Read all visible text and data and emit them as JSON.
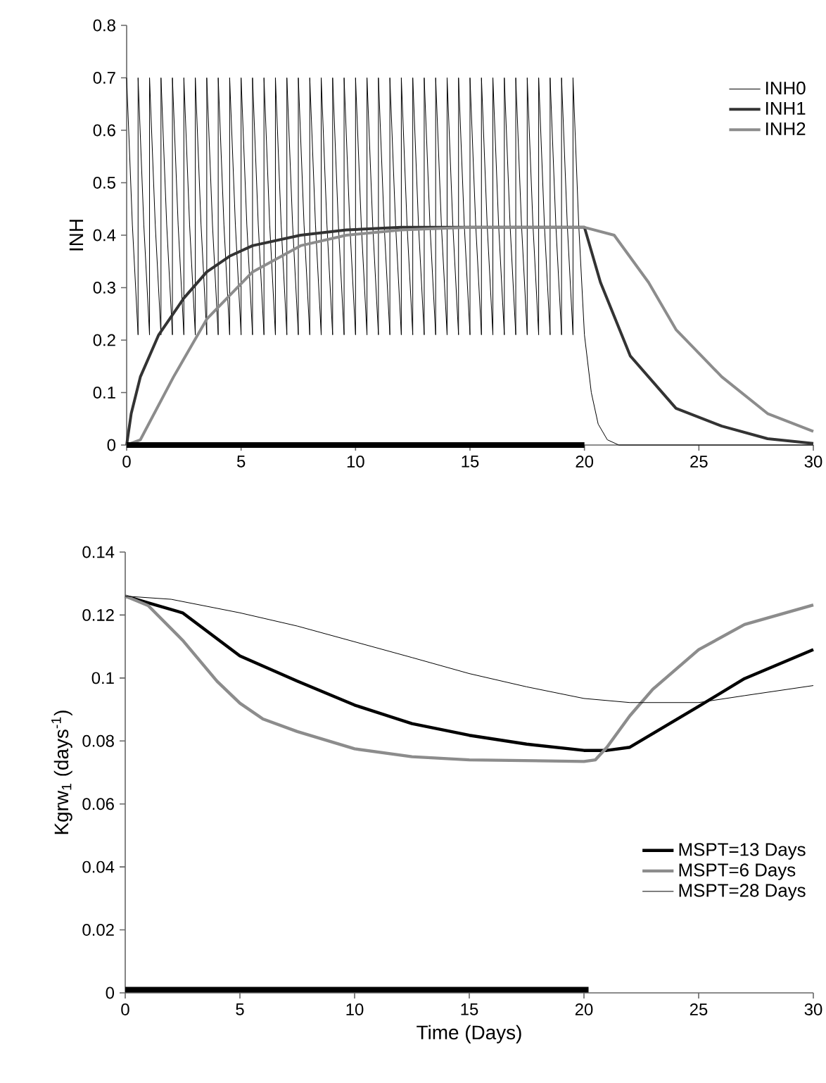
{
  "chart_data": [
    {
      "type": "line",
      "ylabel": "INH",
      "xlim": [
        0,
        30
      ],
      "ylim": [
        0,
        0.8
      ],
      "xticks": [
        0,
        5,
        10,
        15,
        20,
        25,
        30
      ],
      "yticks": [
        0,
        0.1,
        0.2,
        0.3,
        0.4,
        0.5,
        0.6,
        0.7,
        0.8
      ],
      "legend": "top right",
      "marker": "none",
      "line_style": "solid",
      "series": [
        {
          "name": "INH0",
          "color": "#000000",
          "x": [
            0,
            0.25,
            0.5,
            0.5,
            0.75,
            1,
            1,
            1.25,
            1.5,
            1.5,
            1.75,
            2,
            2,
            2.25,
            2.5,
            2.5,
            2.75,
            3,
            3,
            3.25,
            3.5,
            3.5,
            3.75,
            4,
            4,
            4.25,
            4.5,
            4.5,
            4.75,
            5,
            5,
            5.25,
            5.5,
            5.5,
            5.75,
            6,
            6,
            6.25,
            6.5,
            6.5,
            6.75,
            7,
            7,
            7.25,
            7.5,
            7.5,
            7.75,
            8,
            8,
            8.25,
            8.5,
            8.5,
            8.75,
            9,
            9,
            9.25,
            9.5,
            9.5,
            9.75,
            10,
            10,
            10.25,
            10.5,
            10.5,
            10.75,
            11,
            11,
            11.25,
            11.5,
            11.5,
            11.75,
            12,
            12,
            12.25,
            12.5,
            12.5,
            12.75,
            13,
            13,
            13.25,
            13.5,
            13.5,
            13.75,
            14,
            14,
            14.25,
            14.5,
            14.5,
            14.75,
            15,
            15,
            15.25,
            15.5,
            15.5,
            15.75,
            16,
            16,
            16.25,
            16.5,
            16.5,
            16.75,
            17,
            17,
            17.25,
            17.5,
            17.5,
            17.75,
            18,
            18,
            18.25,
            18.5,
            18.5,
            18.75,
            19,
            19,
            19.25,
            19.5,
            19.5,
            19.75,
            20,
            20.3,
            20.6,
            21,
            21.5,
            30
          ],
          "values": [
            0.7,
            0.42,
            0.21,
            0.7,
            0.42,
            0.21,
            0.7,
            0.42,
            0.21,
            0.7,
            0.42,
            0.21,
            0.7,
            0.42,
            0.21,
            0.7,
            0.42,
            0.21,
            0.7,
            0.42,
            0.21,
            0.7,
            0.42,
            0.21,
            0.7,
            0.42,
            0.21,
            0.7,
            0.42,
            0.21,
            0.7,
            0.42,
            0.21,
            0.7,
            0.42,
            0.21,
            0.7,
            0.42,
            0.21,
            0.7,
            0.42,
            0.21,
            0.7,
            0.42,
            0.21,
            0.7,
            0.42,
            0.21,
            0.7,
            0.42,
            0.21,
            0.7,
            0.42,
            0.21,
            0.7,
            0.42,
            0.21,
            0.7,
            0.42,
            0.21,
            0.7,
            0.42,
            0.21,
            0.7,
            0.42,
            0.21,
            0.7,
            0.42,
            0.21,
            0.7,
            0.42,
            0.21,
            0.7,
            0.42,
            0.21,
            0.7,
            0.42,
            0.21,
            0.7,
            0.42,
            0.21,
            0.7,
            0.42,
            0.21,
            0.7,
            0.42,
            0.21,
            0.7,
            0.42,
            0.21,
            0.7,
            0.42,
            0.21,
            0.7,
            0.42,
            0.21,
            0.7,
            0.42,
            0.21,
            0.7,
            0.42,
            0.21,
            0.7,
            0.42,
            0.21,
            0.7,
            0.42,
            0.21,
            0.7,
            0.42,
            0.21,
            0.7,
            0.42,
            0.21,
            0.7,
            0.42,
            0.21,
            0.7,
            0.42,
            0.21,
            0.1,
            0.04,
            0.01,
            0,
            0
          ]
        },
        {
          "name": "INH1",
          "color": "#333333",
          "x": [
            0,
            0.2,
            0.6,
            1.4,
            2.5,
            3.5,
            4.5,
            5.5,
            7.6,
            9.6,
            12,
            15,
            20,
            20.7,
            22,
            24,
            26,
            28,
            30
          ],
          "values": [
            0,
            0.06,
            0.13,
            0.21,
            0.28,
            0.33,
            0.36,
            0.38,
            0.4,
            0.41,
            0.415,
            0.415,
            0.415,
            0.31,
            0.17,
            0.07,
            0.036,
            0.012,
            0.003
          ]
        },
        {
          "name": "INH2",
          "color": "#8c8c8c",
          "x": [
            0,
            0.6,
            2.05,
            3.5,
            5.5,
            7.6,
            9.6,
            12,
            15,
            20,
            21.3,
            22.8,
            24,
            26,
            28,
            30
          ],
          "values": [
            0,
            0.01,
            0.13,
            0.24,
            0.33,
            0.38,
            0.4,
            0.41,
            0.415,
            0.415,
            0.4,
            0.31,
            0.22,
            0.13,
            0.06,
            0.026
          ]
        },
        {
          "color": "#000000",
          "x": [
            0,
            20
          ],
          "values": [
            0,
            0
          ]
        }
      ]
    },
    {
      "type": "line",
      "xlabel": "Time (Days)",
      "ylabel": "Kgrw$_{1}$ (days$^{-1}$)",
      "xlim": [
        0,
        30
      ],
      "ylim": [
        0,
        0.14
      ],
      "xticks": [
        0,
        5,
        10,
        15,
        20,
        25,
        30
      ],
      "yticks": [
        0,
        0.02,
        0.04,
        0.06,
        0.08,
        0.1,
        0.12,
        0.14
      ],
      "legend": "bottom right",
      "marker": "none",
      "line_style": "solid",
      "series": [
        {
          "name": "MSPT=13 Days",
          "color": "#000000",
          "x": [
            0,
            2.5,
            5,
            7.5,
            10,
            12.5,
            15,
            17.5,
            20,
            21,
            22,
            25,
            27,
            30
          ],
          "values": [
            0.126,
            0.1207,
            0.107,
            0.099,
            0.0914,
            0.0855,
            0.0818,
            0.079,
            0.077,
            0.077,
            0.078,
            0.091,
            0.0998,
            0.109
          ]
        },
        {
          "name": "MSPT=6 Days",
          "color": "#8c8c8c",
          "x": [
            0,
            1,
            2.5,
            4,
            5,
            6,
            7.5,
            10,
            12.5,
            15,
            20,
            20.5,
            21,
            22,
            23,
            25,
            27,
            30
          ],
          "values": [
            0.126,
            0.123,
            0.112,
            0.099,
            0.092,
            0.087,
            0.083,
            0.0775,
            0.075,
            0.074,
            0.0735,
            0.074,
            0.078,
            0.088,
            0.0964,
            0.109,
            0.117,
            0.1232
          ]
        },
        {
          "name": "MSPT=28 Days",
          "color": "#000000",
          "x": [
            0,
            2,
            5,
            7.5,
            10,
            12.5,
            15,
            17.5,
            20,
            22,
            25,
            27,
            30
          ],
          "values": [
            0.126,
            0.125,
            0.1207,
            0.1165,
            0.1115,
            0.1065,
            0.1014,
            0.0972,
            0.0935,
            0.0922,
            0.0922,
            0.0944,
            0.0976
          ]
        },
        {
          "color": "#000000",
          "x": [
            0,
            20.2
          ],
          "values": [
            0.001,
            0.001
          ]
        }
      ]
    }
  ]
}
